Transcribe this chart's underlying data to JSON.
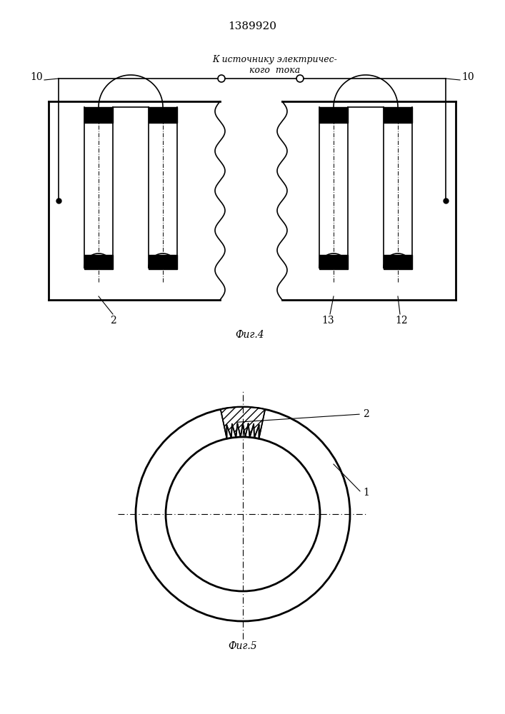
{
  "title": "1389920",
  "fig4_label": "Фиг.4",
  "fig5_label": "Фиг.5",
  "annotation_line1": "К источнику электричес-",
  "annotation_line2": "кого  тока",
  "bg_color": "#ffffff",
  "line_color": "#000000",
  "label_10_left": "10",
  "label_10_right": "10",
  "label_2": "2",
  "label_13": "13",
  "label_12": "12",
  "label_1": "1",
  "label_2b": "2"
}
